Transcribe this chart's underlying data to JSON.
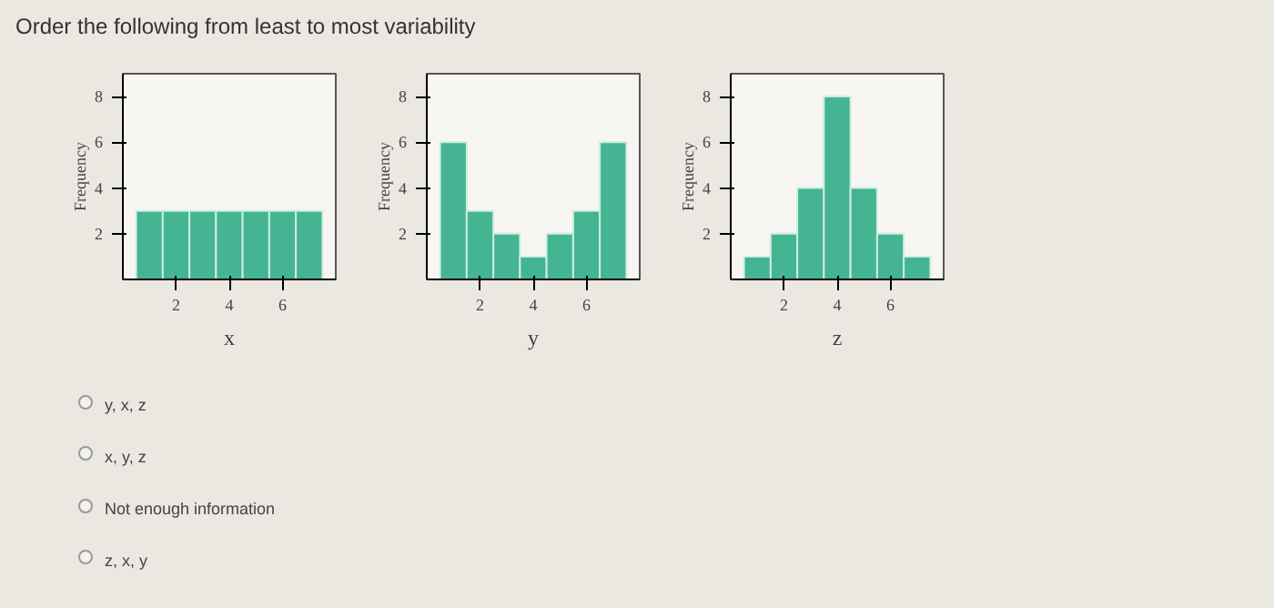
{
  "chart_data": [
    {
      "type": "other",
      "title": "Order the following from least to most variability"
    },
    {
      "type": "histogram",
      "xlabel": "x",
      "ylabel": "Frequency",
      "bins": [
        0.5,
        1.5,
        2.5,
        3.5,
        4.5,
        5.5,
        6.5,
        7.5
      ],
      "values": [
        3,
        3,
        3,
        3,
        3,
        3,
        3
      ],
      "color": "#45b493",
      "xlim": [
        0,
        8
      ],
      "ylim": [
        0,
        9
      ],
      "xticks": [
        2,
        4,
        6
      ],
      "yticks": [
        2,
        4,
        6,
        8
      ],
      "grid": false
    },
    {
      "type": "histogram",
      "xlabel": "y",
      "ylabel": "Frequency",
      "bins": [
        0.5,
        1.5,
        2.5,
        3.5,
        4.5,
        5.5,
        6.5,
        7.5
      ],
      "values": [
        6,
        3,
        2,
        1,
        2,
        3,
        6
      ],
      "color": "#45b493",
      "xlim": [
        0,
        8
      ],
      "ylim": [
        0,
        9
      ],
      "xticks": [
        2,
        4,
        6
      ],
      "yticks": [
        2,
        4,
        6,
        8
      ],
      "grid": false
    },
    {
      "type": "histogram",
      "xlabel": "z",
      "ylabel": "Frequency",
      "bins": [
        0.5,
        1.5,
        2.5,
        3.5,
        4.5,
        5.5,
        6.5,
        7.5
      ],
      "values": [
        1,
        2,
        4,
        8,
        4,
        2,
        1
      ],
      "color": "#45b493",
      "xlim": [
        0,
        8
      ],
      "ylim": [
        0,
        9
      ],
      "xticks": [
        2,
        4,
        6
      ],
      "yticks": [
        2,
        4,
        6,
        8
      ],
      "grid": false
    },
    {
      "type": "other",
      "annotations": [
        "y, x, z",
        "x, y, z",
        "Not enough information",
        "z, x, y"
      ]
    }
  ]
}
